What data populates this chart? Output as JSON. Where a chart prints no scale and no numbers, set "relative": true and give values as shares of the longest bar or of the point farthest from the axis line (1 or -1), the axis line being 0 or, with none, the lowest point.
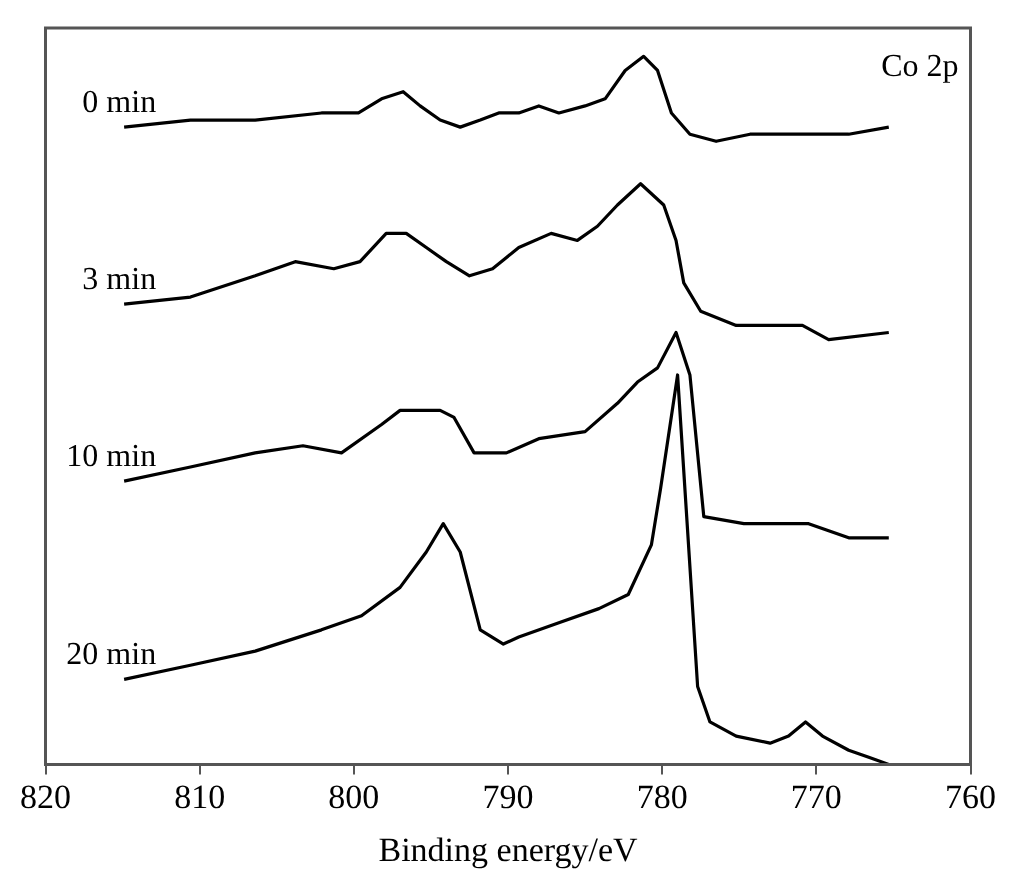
{
  "chart_data": {
    "type": "line",
    "xlabel": "Binding energy/eV",
    "relative": true,
    "xlim": [
      820,
      760
    ],
    "xticks": [
      820,
      810,
      800,
      790,
      780,
      770,
      760
    ],
    "grid": false,
    "legend": false,
    "annotations": [
      "Co 2p"
    ],
    "series": [
      {
        "name": "0 min",
        "color": "#000000",
        "x": [
          814.9,
          810.6,
          806.4,
          802.1,
          799.7,
          798.2,
          796.8,
          795.7,
          794.4,
          793.1,
          791.8,
          790.6,
          789.3,
          788.0,
          786.7,
          785.0,
          783.7,
          782.4,
          781.2,
          780.3,
          779.4,
          778.2,
          776.5,
          774.3,
          772.2,
          769.6,
          767.9,
          765.3
        ],
        "values": [
          0.9,
          0.91,
          0.91,
          0.92,
          0.92,
          0.94,
          0.95,
          0.93,
          0.91,
          0.9,
          0.91,
          0.92,
          0.92,
          0.93,
          0.92,
          0.93,
          0.94,
          0.98,
          1.0,
          0.98,
          0.92,
          0.89,
          0.88,
          0.89,
          0.89,
          0.89,
          0.89,
          0.9
        ]
      },
      {
        "name": "3 min",
        "color": "#000000",
        "x": [
          814.9,
          810.6,
          806.4,
          803.8,
          801.3,
          799.6,
          797.9,
          796.6,
          795.3,
          794.0,
          792.5,
          791.0,
          789.3,
          787.2,
          785.5,
          784.2,
          782.9,
          781.4,
          779.9,
          779.1,
          778.6,
          777.5,
          775.2,
          772.2,
          770.9,
          769.2,
          765.3
        ],
        "values": [
          0.65,
          0.66,
          0.69,
          0.71,
          0.7,
          0.71,
          0.75,
          0.75,
          0.73,
          0.71,
          0.69,
          0.7,
          0.73,
          0.75,
          0.74,
          0.76,
          0.79,
          0.82,
          0.79,
          0.74,
          0.68,
          0.64,
          0.62,
          0.62,
          0.62,
          0.6,
          0.61
        ]
      },
      {
        "name": "10 min",
        "color": "#000000",
        "x": [
          814.9,
          810.6,
          806.4,
          803.3,
          800.8,
          798.2,
          797.0,
          794.4,
          793.5,
          792.2,
          790.1,
          788.0,
          785.0,
          782.9,
          781.6,
          780.3,
          779.1,
          778.2,
          777.3,
          774.7,
          770.5,
          767.9,
          765.3
        ],
        "values": [
          0.4,
          0.42,
          0.44,
          0.45,
          0.44,
          0.48,
          0.5,
          0.5,
          0.49,
          0.44,
          0.44,
          0.46,
          0.47,
          0.51,
          0.54,
          0.56,
          0.61,
          0.55,
          0.35,
          0.34,
          0.34,
          0.32,
          0.32
        ]
      },
      {
        "name": "20 min",
        "color": "#000000",
        "x": [
          814.9,
          810.6,
          806.4,
          802.1,
          799.5,
          797.0,
          795.3,
          794.2,
          793.1,
          791.8,
          790.3,
          789.3,
          786.7,
          784.1,
          782.2,
          780.7,
          780.1,
          779.0,
          777.7,
          776.9,
          775.2,
          773.0,
          771.8,
          770.7,
          769.6,
          767.9,
          766.6,
          765.3
        ],
        "values": [
          0.12,
          0.14,
          0.16,
          0.19,
          0.21,
          0.25,
          0.3,
          0.34,
          0.3,
          0.19,
          0.17,
          0.18,
          0.2,
          0.22,
          0.24,
          0.31,
          0.39,
          0.55,
          0.11,
          0.06,
          0.04,
          0.03,
          0.04,
          0.06,
          0.04,
          0.02,
          0.01,
          0.0
        ]
      }
    ]
  }
}
